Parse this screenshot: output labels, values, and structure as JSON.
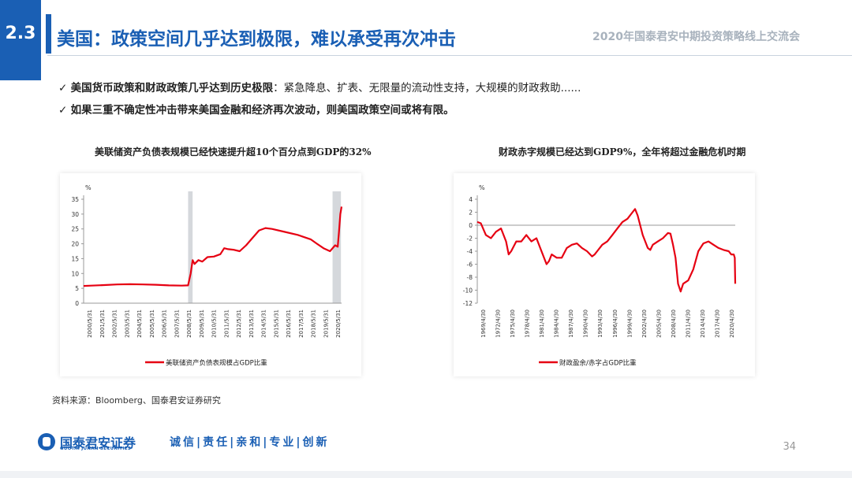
{
  "header": {
    "section_number": "2.3",
    "title": "美国：政策空间几乎达到极限，难以承受再次冲击",
    "event": "2020年国泰君安中期投资策略线上交流会"
  },
  "bullets": [
    {
      "check": "✓",
      "bold": "美国货币政策和财政政策几乎达到历史极限",
      "rest": "：紧急降息、扩表、无限量的流动性支持，大规模的财政救助......"
    },
    {
      "check": "✓",
      "bold": "如果三重不确定性冲击带来美国金融和经济再次波动，则美国政策空间或将有限。",
      "rest": ""
    }
  ],
  "chart_titles": [
    "美联储资产负债表规模已经快速提升超10个百分点到GDP的32%",
    "财政赤字规模已经达到GDP9%，全年将超过金融危机时期"
  ],
  "chart_data": [
    {
      "type": "line",
      "title": "美联储资产负债表规模已经快速提升超10个百分点到GDP的32%",
      "ylabel": "%",
      "ylim": [
        0,
        35
      ],
      "yticks": [
        0,
        5,
        10,
        15,
        20,
        25,
        30,
        35
      ],
      "x_ticks": [
        "2000/5/31",
        "2001/5/31",
        "2002/5/31",
        "2003/5/31",
        "2004/5/31",
        "2005/5/31",
        "2006/5/31",
        "2007/5/31",
        "2008/5/31",
        "2009/5/31",
        "2010/5/31",
        "2011/5/31",
        "2012/5/31",
        "2013/5/31",
        "2014/5/31",
        "2015/5/31",
        "2016/5/31",
        "2017/5/31",
        "2018/5/31",
        "2019/5/31",
        "2020/5/31"
      ],
      "x_range": [
        2000.4,
        2020.4
      ],
      "shaded_periods": [
        [
          2008.5,
          2008.85
        ],
        [
          2019.7,
          2020.35
        ]
      ],
      "series": [
        {
          "name": "美联储资产负债表规模占GDP比重",
          "color": "#e60012",
          "x": [
            2000.4,
            2001.0,
            2002.0,
            2003.0,
            2004.0,
            2005.0,
            2006.0,
            2007.0,
            2008.0,
            2008.5,
            2008.7,
            2008.85,
            2009.0,
            2009.3,
            2009.6,
            2010.0,
            2010.5,
            2011.0,
            2011.3,
            2011.6,
            2012.0,
            2012.5,
            2013.0,
            2013.5,
            2014.0,
            2014.5,
            2015.0,
            2016.0,
            2017.0,
            2018.0,
            2018.5,
            2019.0,
            2019.5,
            2019.9,
            2020.1,
            2020.2,
            2020.3,
            2020.4
          ],
          "y": [
            5.8,
            5.9,
            6.1,
            6.3,
            6.4,
            6.3,
            6.2,
            6.0,
            5.9,
            6.0,
            10.0,
            14.5,
            13.2,
            14.5,
            14.0,
            15.5,
            15.7,
            16.5,
            18.5,
            18.2,
            18.0,
            17.5,
            19.5,
            22.0,
            24.5,
            25.3,
            25.0,
            24.0,
            23.0,
            21.5,
            20.0,
            18.5,
            17.5,
            19.5,
            19.0,
            24.0,
            30.0,
            32.5
          ]
        }
      ]
    },
    {
      "type": "line",
      "title": "财政赤字规模已经达到GDP9%，全年将超过金融危机时期",
      "ylabel": "%",
      "ylim": [
        -12,
        4
      ],
      "yticks": [
        -12,
        -10,
        -8,
        -6,
        -4,
        -2,
        0,
        2,
        4
      ],
      "x_ticks": [
        "1969/4/30",
        "1972/4/30",
        "1975/4/30",
        "1978/4/30",
        "1981/4/30",
        "1984/4/30",
        "1987/4/30",
        "1990/4/30",
        "1993/4/30",
        "1996/4/30",
        "1999/4/30",
        "2002/4/30",
        "2005/4/30",
        "2008/4/30",
        "2011/4/30",
        "2014/4/30",
        "2017/4/30",
        "2020/4/30"
      ],
      "x_range": [
        1969.3,
        2020.3
      ],
      "series": [
        {
          "name": "财政盈余/赤字占GDP比重",
          "color": "#e60012",
          "x": [
            1969.3,
            1970.0,
            1971.0,
            1972.0,
            1973.0,
            1974.0,
            1975.0,
            1975.5,
            1976.0,
            1977.0,
            1978.0,
            1979.0,
            1980.0,
            1981.0,
            1982.0,
            1983.0,
            1983.5,
            1984.0,
            1985.0,
            1986.0,
            1987.0,
            1988.0,
            1989.0,
            1990.0,
            1991.0,
            1992.0,
            1992.5,
            1993.0,
            1994.0,
            1995.0,
            1996.0,
            1997.0,
            1998.0,
            1999.0,
            2000.0,
            2000.5,
            2001.0,
            2001.5,
            2002.0,
            2003.0,
            2003.5,
            2004.0,
            2005.0,
            2006.0,
            2007.0,
            2007.5,
            2008.0,
            2008.5,
            2009.0,
            2009.5,
            2010.0,
            2011.0,
            2012.0,
            2013.0,
            2014.0,
            2015.0,
            2016.0,
            2017.0,
            2018.0,
            2019.0,
            2019.5,
            2020.0,
            2020.2,
            2020.3
          ],
          "y": [
            0.5,
            0.3,
            -1.5,
            -2.0,
            -1.0,
            -0.5,
            -2.5,
            -4.5,
            -4.0,
            -2.5,
            -2.5,
            -1.5,
            -2.5,
            -2.0,
            -4.0,
            -6.0,
            -5.5,
            -4.5,
            -5.0,
            -5.0,
            -3.5,
            -3.0,
            -2.8,
            -3.5,
            -4.0,
            -4.8,
            -4.5,
            -4.0,
            -3.0,
            -2.5,
            -1.5,
            -0.5,
            0.5,
            1.0,
            2.0,
            2.5,
            1.5,
            0.0,
            -1.5,
            -3.5,
            -3.8,
            -3.0,
            -2.5,
            -2.0,
            -1.2,
            -1.3,
            -3.0,
            -5.0,
            -9.0,
            -10.2,
            -9.0,
            -8.5,
            -6.8,
            -4.0,
            -2.8,
            -2.5,
            -3.0,
            -3.5,
            -3.8,
            -4.0,
            -4.5,
            -4.5,
            -5.0,
            -9.0
          ]
        }
      ]
    }
  ],
  "source": "资料来源：Bloomberg、国泰君安证券研究",
  "footer": {
    "brand": "国泰君安证券",
    "brand_en": "GUOTAI JUNAN SECURITIES",
    "motto": "诚信|责任|亲和|专业|创新",
    "page": "34"
  },
  "colors": {
    "brand_blue": "#1a5fb4",
    "series_red": "#e60012",
    "shade": "#d5d8dc"
  }
}
